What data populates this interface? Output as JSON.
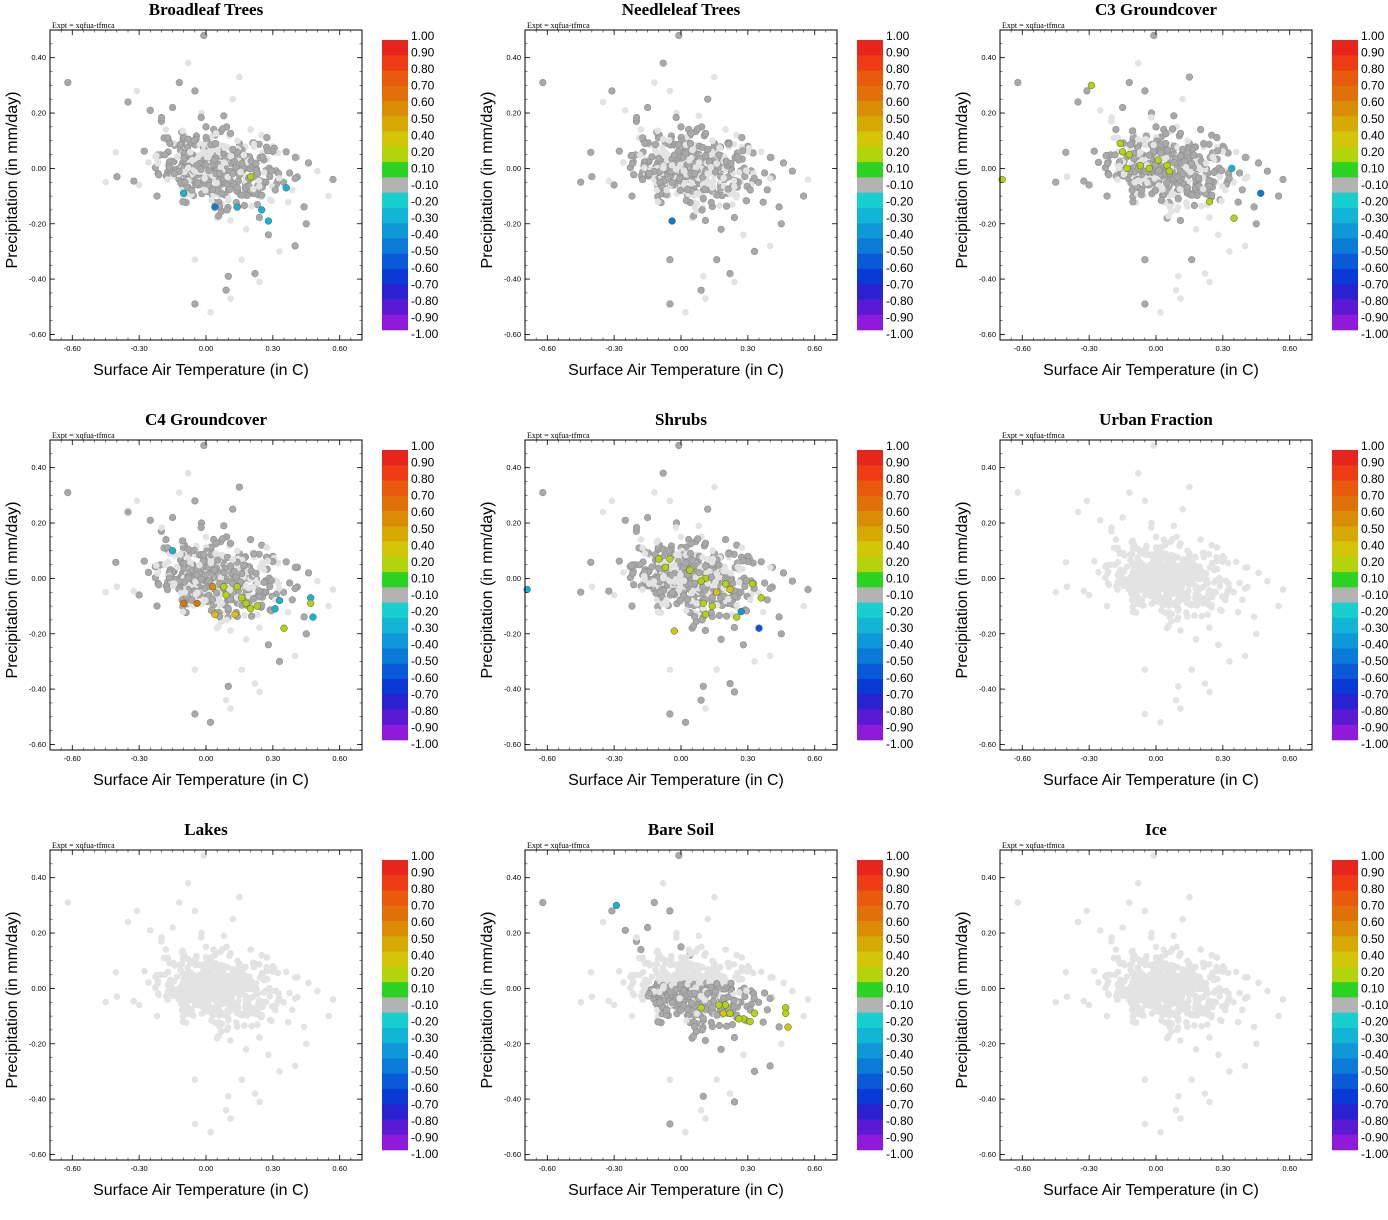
{
  "figure": {
    "expt_label": "Expt = xqfua-tfmca",
    "xlabel": "Surface Air Temperature (in C)",
    "ylabel": "Precipitation (in mm/day)"
  },
  "colorbar": {
    "labels": [
      "1.00",
      "0.90",
      "0.80",
      "0.70",
      "0.60",
      "0.50",
      "0.40",
      "0.20",
      "0.10",
      "-0.10",
      "-0.20",
      "-0.30",
      "-0.40",
      "-0.50",
      "-0.60",
      "-0.70",
      "-0.80",
      "-0.90",
      "-1.00"
    ],
    "colors": [
      "#e8251d",
      "#ef3c14",
      "#e95a0d",
      "#e07108",
      "#db8c05",
      "#d6aa03",
      "#d3c508",
      "#b3d40a",
      "#2bd323",
      "#b3b3b3",
      "#17cfcf",
      "#13b5d7",
      "#0f98d8",
      "#0b7bd8",
      "#0a5ad8",
      "#0a3ad6",
      "#2a22d0",
      "#5a1ad4",
      "#8f1ad9"
    ]
  },
  "chart_data": [
    {
      "type": "scatter",
      "title": "Broadleaf Trees",
      "xlim": [
        -0.7,
        0.7
      ],
      "ylim": [
        -0.62,
        0.5
      ],
      "xticks": [
        "-0.60",
        "-0.30",
        "0.00",
        "0.30",
        "0.60"
      ],
      "yticks": [
        "0.40",
        "0.20",
        "0.00",
        "-0.20",
        "-0.40",
        "-0.60"
      ],
      "series": [
        {
          "name": "colored",
          "x": [
            0.2,
            0.36,
            -0.1,
            0.04,
            0.14,
            0.25,
            0.28
          ],
          "y": [
            -0.03,
            -0.07,
            -0.09,
            -0.14,
            -0.14,
            -0.15,
            -0.19
          ],
          "c": [
            0.15,
            -0.25,
            -0.25,
            -0.45,
            -0.3,
            -0.3,
            -0.3
          ]
        }
      ]
    },
    {
      "type": "scatter",
      "title": "Needleleaf Trees",
      "xlim": [
        -0.7,
        0.7
      ],
      "ylim": [
        -0.62,
        0.5
      ],
      "xticks": [
        "-0.60",
        "-0.30",
        "0.00",
        "0.30",
        "0.60"
      ],
      "yticks": [
        "0.40",
        "0.20",
        "0.00",
        "-0.20",
        "-0.40",
        "-0.60"
      ],
      "series": [
        {
          "name": "colored",
          "x": [
            -0.04
          ],
          "y": [
            -0.19
          ],
          "c": [
            -0.45
          ]
        }
      ]
    },
    {
      "type": "scatter",
      "title": "C3 Groundcover",
      "xlim": [
        -0.7,
        0.7
      ],
      "ylim": [
        -0.62,
        0.5
      ],
      "xticks": [
        "-0.60",
        "-0.30",
        "0.00",
        "0.30",
        "0.60"
      ],
      "yticks": [
        "0.40",
        "0.20",
        "0.00",
        "-0.20",
        "-0.40",
        "-0.60"
      ],
      "series": [
        {
          "name": "colored",
          "x": [
            -0.29,
            -0.69,
            -0.16,
            -0.15,
            -0.12,
            -0.07,
            -0.13,
            -0.03,
            0.01,
            0.05,
            0.06,
            0.34,
            0.47,
            0.24,
            0.35
          ],
          "y": [
            0.3,
            -0.04,
            0.09,
            0.06,
            0.05,
            0.01,
            0.0,
            0.0,
            0.03,
            0.01,
            -0.01,
            0.0,
            -0.09,
            -0.12,
            -0.18
          ],
          "c": [
            0.15,
            0.15,
            0.15,
            0.15,
            0.15,
            0.15,
            0.15,
            0.15,
            0.15,
            0.15,
            0.15,
            -0.25,
            -0.45,
            0.15,
            0.15
          ]
        }
      ]
    },
    {
      "type": "scatter",
      "title": "C4 Groundcover",
      "xlim": [
        -0.7,
        0.7
      ],
      "ylim": [
        -0.62,
        0.5
      ],
      "xticks": [
        "-0.60",
        "-0.30",
        "0.00",
        "0.30",
        "0.60"
      ],
      "yticks": [
        "0.40",
        "0.20",
        "0.00",
        "-0.20",
        "-0.40",
        "-0.60"
      ],
      "series": [
        {
          "name": "colored",
          "x": [
            -0.15,
            0.03,
            0.08,
            0.14,
            0.09,
            0.16,
            0.18,
            0.23,
            -0.1,
            -0.04,
            0.2,
            0.33,
            0.31,
            0.47,
            0.47,
            0.48,
            0.04,
            0.13,
            0.35
          ],
          "y": [
            0.1,
            -0.03,
            -0.03,
            -0.03,
            -0.06,
            -0.07,
            -0.09,
            -0.1,
            -0.09,
            -0.09,
            -0.11,
            -0.08,
            -0.11,
            -0.07,
            -0.09,
            -0.14,
            -0.13,
            -0.13,
            -0.18
          ],
          "c": [
            -0.25,
            0.55,
            0.15,
            0.15,
            0.15,
            0.15,
            0.15,
            0.15,
            0.65,
            0.65,
            0.15,
            -0.25,
            -0.25,
            -0.25,
            0.15,
            -0.25,
            0.35,
            0.35,
            0.15
          ]
        }
      ]
    },
    {
      "type": "scatter",
      "title": "Shrubs",
      "xlim": [
        -0.7,
        0.7
      ],
      "ylim": [
        -0.62,
        0.5
      ],
      "xticks": [
        "-0.60",
        "-0.30",
        "0.00",
        "0.30",
        "0.60"
      ],
      "yticks": [
        "0.40",
        "0.20",
        "0.00",
        "-0.20",
        "-0.40",
        "-0.60"
      ],
      "series": [
        {
          "name": "colored",
          "x": [
            -0.69,
            -0.1,
            -0.05,
            -0.07,
            0.04,
            0.11,
            0.09,
            0.2,
            0.22,
            0.32,
            0.36,
            0.16,
            0.1,
            0.14,
            0.27,
            -0.03,
            0.25,
            0.35,
            0.11
          ],
          "y": [
            -0.04,
            0.07,
            0.07,
            0.04,
            0.03,
            0.0,
            -0.01,
            -0.02,
            -0.04,
            -0.02,
            -0.07,
            -0.05,
            -0.09,
            -0.1,
            -0.12,
            -0.19,
            -0.14,
            -0.18,
            -0.13
          ],
          "c": [
            -0.25,
            0.15,
            0.15,
            0.15,
            0.15,
            0.15,
            0.15,
            0.15,
            0.35,
            0.15,
            0.15,
            0.35,
            0.15,
            0.15,
            -0.35,
            0.35,
            0.15,
            -0.55,
            0.15
          ]
        }
      ]
    },
    {
      "type": "scatter",
      "title": "Urban Fraction",
      "xlim": [
        -0.7,
        0.7
      ],
      "ylim": [
        -0.62,
        0.5
      ],
      "xticks": [
        "-0.60",
        "-0.30",
        "0.00",
        "0.30",
        "0.60"
      ],
      "yticks": [
        "0.40",
        "0.20",
        "0.00",
        "-0.20",
        "-0.40",
        "-0.60"
      ],
      "series": [
        {
          "name": "colored",
          "x": [],
          "y": [],
          "c": []
        }
      ]
    },
    {
      "type": "scatter",
      "title": "Lakes",
      "xlim": [
        -0.7,
        0.7
      ],
      "ylim": [
        -0.62,
        0.5
      ],
      "xticks": [
        "-0.60",
        "-0.30",
        "0.00",
        "0.30",
        "0.60"
      ],
      "yticks": [
        "0.40",
        "0.20",
        "0.00",
        "-0.20",
        "-0.40",
        "-0.60"
      ],
      "series": [
        {
          "name": "colored",
          "x": [],
          "y": [],
          "c": []
        }
      ]
    },
    {
      "type": "scatter",
      "title": "Bare Soil",
      "xlim": [
        -0.7,
        0.7
      ],
      "ylim": [
        -0.62,
        0.5
      ],
      "xticks": [
        "-0.60",
        "-0.30",
        "0.00",
        "0.30",
        "0.60"
      ],
      "yticks": [
        "0.40",
        "0.20",
        "0.00",
        "-0.20",
        "-0.40",
        "-0.60"
      ],
      "series": [
        {
          "name": "colored",
          "x": [
            -0.29,
            0.09,
            0.17,
            0.2,
            0.22,
            0.28,
            0.31,
            0.33,
            0.47,
            0.47,
            0.48,
            0.19,
            0.26
          ],
          "y": [
            0.3,
            -0.07,
            -0.06,
            -0.06,
            -0.09,
            -0.11,
            -0.12,
            -0.09,
            -0.07,
            -0.09,
            -0.14,
            -0.09,
            -0.11
          ],
          "c": [
            -0.25,
            0.15,
            0.15,
            0.15,
            0.15,
            0.15,
            0.15,
            0.15,
            0.15,
            0.15,
            0.35,
            0.35,
            0.15
          ]
        }
      ]
    },
    {
      "type": "scatter",
      "title": "Ice",
      "xlim": [
        -0.7,
        0.7
      ],
      "ylim": [
        -0.62,
        0.5
      ],
      "xticks": [
        "-0.60",
        "-0.30",
        "0.00",
        "0.30",
        "0.60"
      ],
      "yticks": [
        "0.40",
        "0.20",
        "0.00",
        "-0.20",
        "-0.40",
        "-0.60"
      ],
      "series": [
        {
          "name": "colored",
          "x": [],
          "y": [],
          "c": []
        }
      ]
    }
  ],
  "background_points": {
    "light_color": "#e3e3e3",
    "dark_color": "#a9a9a9",
    "light": {
      "x": [
        -0.62,
        -0.35,
        -0.31,
        -0.25,
        -0.2,
        -0.18,
        -0.15,
        -0.12,
        -0.08,
        -0.05,
        -0.02,
        0.0,
        0.04,
        0.08,
        0.12,
        0.15,
        0.2,
        0.25,
        0.3,
        0.36,
        0.41,
        0.46,
        0.5,
        0.57,
        -0.3,
        -0.22,
        -0.1,
        0.05,
        0.18,
        0.28,
        0.4,
        -0.4,
        -0.05,
        0.1,
        0.22,
        0.33,
        0.45,
        0.55,
        -0.45,
        -0.05,
        0.02,
        0.09,
        0.11,
        0.24,
        0.16,
        -0.01
      ],
      "y": [
        0.31,
        0.24,
        0.28,
        0.21,
        0.17,
        0.14,
        0.22,
        0.31,
        0.38,
        0.28,
        0.2,
        0.15,
        0.12,
        0.19,
        0.25,
        0.33,
        0.14,
        0.12,
        0.08,
        0.06,
        0.04,
        0.02,
        -0.01,
        -0.04,
        -0.06,
        -0.1,
        -0.12,
        -0.18,
        -0.22,
        -0.24,
        -0.28,
        -0.03,
        -0.33,
        -0.39,
        -0.38,
        -0.3,
        -0.2,
        -0.1,
        -0.05,
        -0.49,
        -0.52,
        -0.44,
        -0.47,
        -0.41,
        -0.33,
        0.48
      ]
    },
    "cluster_center": [
      0.05,
      0.0
    ],
    "cluster_spread": [
      0.13,
      0.06
    ]
  }
}
